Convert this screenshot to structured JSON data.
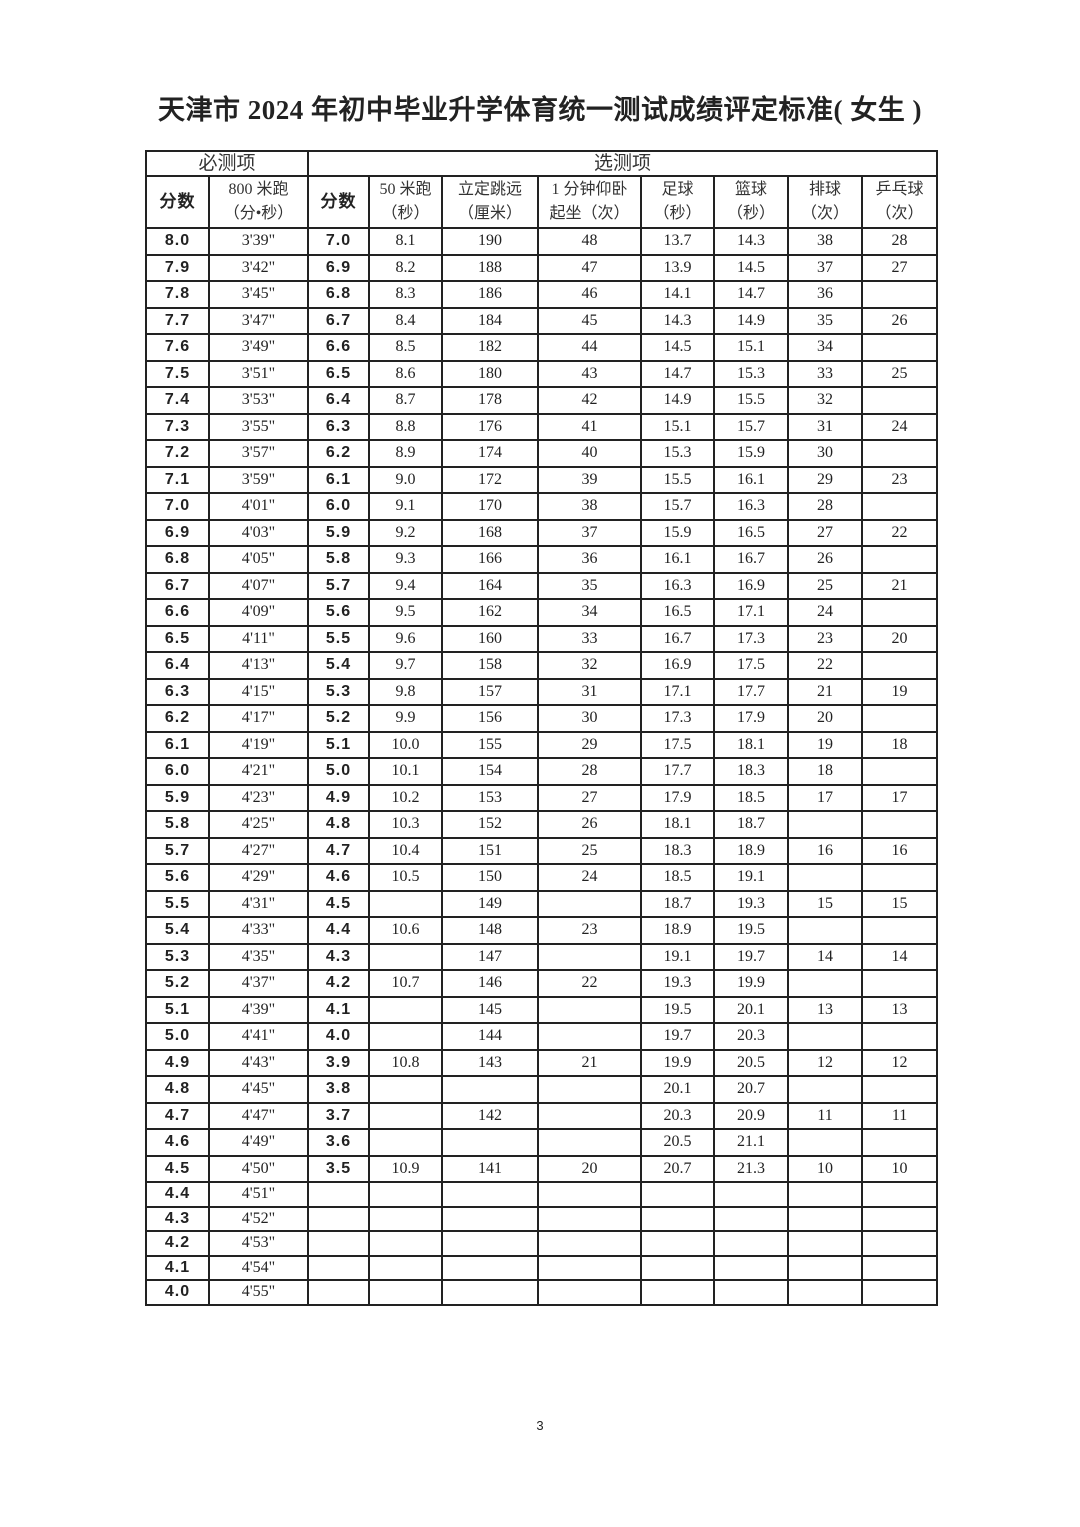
{
  "title": "天津市 2024 年初中毕业升学体育统一测试成绩评定标准( 女生 )",
  "table": {
    "group_required": "必测项",
    "group_optional": "选测项",
    "headers": [
      {
        "l1": "分数",
        "l2": ""
      },
      {
        "l1": "800 米跑",
        "l2": "（分•秒）"
      },
      {
        "l1": "分数",
        "l2": ""
      },
      {
        "l1": "50 米跑",
        "l2": "（秒）"
      },
      {
        "l1": "立定跳远",
        "l2": "（厘米）"
      },
      {
        "l1": "1 分钟仰卧",
        "l2": "起坐（次）"
      },
      {
        "l1": "足球",
        "l2": "（秒）"
      },
      {
        "l1": "篮球",
        "l2": "（秒）"
      },
      {
        "l1": "排球",
        "l2": "（次）"
      },
      {
        "l1": "乒乓球",
        "l2": "（次）"
      }
    ],
    "rows": [
      [
        "8.0",
        "3'39\"",
        "7.0",
        "8.1",
        "190",
        "48",
        "13.7",
        "14.3",
        "38",
        "28"
      ],
      [
        "7.9",
        "3'42\"",
        "6.9",
        "8.2",
        "188",
        "47",
        "13.9",
        "14.5",
        "37",
        "27"
      ],
      [
        "7.8",
        "3'45\"",
        "6.8",
        "8.3",
        "186",
        "46",
        "14.1",
        "14.7",
        "36",
        ""
      ],
      [
        "7.7",
        "3'47\"",
        "6.7",
        "8.4",
        "184",
        "45",
        "14.3",
        "14.9",
        "35",
        "26"
      ],
      [
        "7.6",
        "3'49\"",
        "6.6",
        "8.5",
        "182",
        "44",
        "14.5",
        "15.1",
        "34",
        ""
      ],
      [
        "7.5",
        "3'51\"",
        "6.5",
        "8.6",
        "180",
        "43",
        "14.7",
        "15.3",
        "33",
        "25"
      ],
      [
        "7.4",
        "3'53\"",
        "6.4",
        "8.7",
        "178",
        "42",
        "14.9",
        "15.5",
        "32",
        ""
      ],
      [
        "7.3",
        "3'55\"",
        "6.3",
        "8.8",
        "176",
        "41",
        "15.1",
        "15.7",
        "31",
        "24"
      ],
      [
        "7.2",
        "3'57\"",
        "6.2",
        "8.9",
        "174",
        "40",
        "15.3",
        "15.9",
        "30",
        ""
      ],
      [
        "7.1",
        "3'59\"",
        "6.1",
        "9.0",
        "172",
        "39",
        "15.5",
        "16.1",
        "29",
        "23"
      ],
      [
        "7.0",
        "4'01\"",
        "6.0",
        "9.1",
        "170",
        "38",
        "15.7",
        "16.3",
        "28",
        ""
      ],
      [
        "6.9",
        "4'03\"",
        "5.9",
        "9.2",
        "168",
        "37",
        "15.9",
        "16.5",
        "27",
        "22"
      ],
      [
        "6.8",
        "4'05\"",
        "5.8",
        "9.3",
        "166",
        "36",
        "16.1",
        "16.7",
        "26",
        ""
      ],
      [
        "6.7",
        "4'07\"",
        "5.7",
        "9.4",
        "164",
        "35",
        "16.3",
        "16.9",
        "25",
        "21"
      ],
      [
        "6.6",
        "4'09\"",
        "5.6",
        "9.5",
        "162",
        "34",
        "16.5",
        "17.1",
        "24",
        ""
      ],
      [
        "6.5",
        "4'11\"",
        "5.5",
        "9.6",
        "160",
        "33",
        "16.7",
        "17.3",
        "23",
        "20"
      ],
      [
        "6.4",
        "4'13\"",
        "5.4",
        "9.7",
        "158",
        "32",
        "16.9",
        "17.5",
        "22",
        ""
      ],
      [
        "6.3",
        "4'15\"",
        "5.3",
        "9.8",
        "157",
        "31",
        "17.1",
        "17.7",
        "21",
        "19"
      ],
      [
        "6.2",
        "4'17\"",
        "5.2",
        "9.9",
        "156",
        "30",
        "17.3",
        "17.9",
        "20",
        ""
      ],
      [
        "6.1",
        "4'19\"",
        "5.1",
        "10.0",
        "155",
        "29",
        "17.5",
        "18.1",
        "19",
        "18"
      ],
      [
        "6.0",
        "4'21\"",
        "5.0",
        "10.1",
        "154",
        "28",
        "17.7",
        "18.3",
        "18",
        ""
      ],
      [
        "5.9",
        "4'23\"",
        "4.9",
        "10.2",
        "153",
        "27",
        "17.9",
        "18.5",
        "17",
        "17"
      ],
      [
        "5.8",
        "4'25\"",
        "4.8",
        "10.3",
        "152",
        "26",
        "18.1",
        "18.7",
        "",
        ""
      ],
      [
        "5.7",
        "4'27\"",
        "4.7",
        "10.4",
        "151",
        "25",
        "18.3",
        "18.9",
        "16",
        "16"
      ],
      [
        "5.6",
        "4'29\"",
        "4.6",
        "10.5",
        "150",
        "24",
        "18.5",
        "19.1",
        "",
        ""
      ],
      [
        "5.5",
        "4'31\"",
        "4.5",
        "",
        "149",
        "",
        "18.7",
        "19.3",
        "15",
        "15"
      ],
      [
        "5.4",
        "4'33\"",
        "4.4",
        "10.6",
        "148",
        "23",
        "18.9",
        "19.5",
        "",
        ""
      ],
      [
        "5.3",
        "4'35\"",
        "4.3",
        "",
        "147",
        "",
        "19.1",
        "19.7",
        "14",
        "14"
      ],
      [
        "5.2",
        "4'37\"",
        "4.2",
        "10.7",
        "146",
        "22",
        "19.3",
        "19.9",
        "",
        ""
      ],
      [
        "5.1",
        "4'39\"",
        "4.1",
        "",
        "145",
        "",
        "19.5",
        "20.1",
        "13",
        "13"
      ],
      [
        "5.0",
        "4'41\"",
        "4.0",
        "",
        "144",
        "",
        "19.7",
        "20.3",
        "",
        ""
      ],
      [
        "4.9",
        "4'43\"",
        "3.9",
        "10.8",
        "143",
        "21",
        "19.9",
        "20.5",
        "12",
        "12"
      ],
      [
        "4.8",
        "4'45\"",
        "3.8",
        "",
        "",
        "",
        "20.1",
        "20.7",
        "",
        ""
      ],
      [
        "4.7",
        "4'47\"",
        "3.7",
        "",
        "142",
        "",
        "20.3",
        "20.9",
        "11",
        "11"
      ],
      [
        "4.6",
        "4'49\"",
        "3.6",
        "",
        "",
        "",
        "20.5",
        "21.1",
        "",
        ""
      ],
      [
        "4.5",
        "4'50\"",
        "3.5",
        "10.9",
        "141",
        "20",
        "20.7",
        "21.3",
        "10",
        "10"
      ],
      [
        "4.4",
        "4'51\"",
        "",
        "",
        "",
        "",
        "",
        "",
        "",
        ""
      ],
      [
        "4.3",
        "4'52\"",
        "",
        "",
        "",
        "",
        "",
        "",
        "",
        ""
      ],
      [
        "4.2",
        "4'53\"",
        "",
        "",
        "",
        "",
        "",
        "",
        "",
        ""
      ],
      [
        "4.1",
        "4'54\"",
        "",
        "",
        "",
        "",
        "",
        "",
        "",
        ""
      ],
      [
        "4.0",
        "4'55\"",
        "",
        "",
        "",
        "",
        "",
        "",
        "",
        ""
      ]
    ]
  },
  "page_number": "3"
}
